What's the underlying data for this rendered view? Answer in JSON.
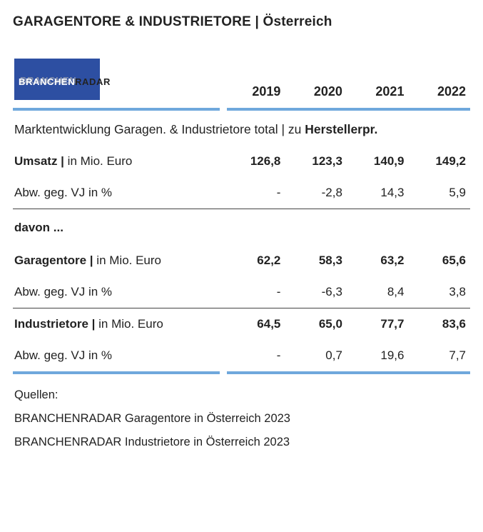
{
  "title": "GARAGENTORE & INDUSTRIETORE | Österreich",
  "logo": {
    "text_front": "BRANCHEN",
    "text_tail": "RADAR"
  },
  "colors": {
    "blue_rule": "#6fa8dc",
    "logo_bg": "#2d4fa2",
    "text": "#222222",
    "thin_rule": "#444444",
    "background": "#ffffff"
  },
  "years": [
    "2019",
    "2020",
    "2021",
    "2022"
  ],
  "subhead_prefix": "Marktentwicklung Garagen. & Industrietore total | zu ",
  "subhead_bold": "Herstellerpr.",
  "rows": {
    "umsatz": {
      "label_bold": "Umsatz |",
      "label_unit": " in Mio. Euro",
      "values": [
        "126,8",
        "123,3",
        "140,9",
        "149,2"
      ],
      "bold_values": true
    },
    "umsatz_abw": {
      "label": "Abw. geg. VJ in %",
      "values": [
        "-",
        "-2,8",
        "14,3",
        "5,9"
      ]
    },
    "davon": {
      "label": "davon ..."
    },
    "garagentore": {
      "label_bold": "Garagentore |",
      "label_unit": " in Mio. Euro",
      "values": [
        "62,2",
        "58,3",
        "63,2",
        "65,6"
      ],
      "bold_values": true
    },
    "garagentore_abw": {
      "label": "Abw. geg. VJ in %",
      "values": [
        "-",
        "-6,3",
        "8,4",
        "3,8"
      ]
    },
    "industrietore": {
      "label_bold": "Industrietore |",
      "label_unit": " in Mio. Euro",
      "values": [
        "64,5",
        "65,0",
        "77,7",
        "83,6"
      ],
      "bold_values": true
    },
    "industrietore_abw": {
      "label": "Abw. geg. VJ in %",
      "values": [
        "-",
        "0,7",
        "19,6",
        "7,7"
      ]
    }
  },
  "footer": {
    "heading": "Quellen:",
    "lines": [
      "BRANCHENRADAR Garagentore in Österreich 2023",
      "BRANCHENRADAR Industrietore in Österreich 2023"
    ]
  },
  "typography": {
    "title_fontsize": 19,
    "header_fontsize": 18,
    "body_fontsize": 17,
    "footer_fontsize": 16.5
  }
}
